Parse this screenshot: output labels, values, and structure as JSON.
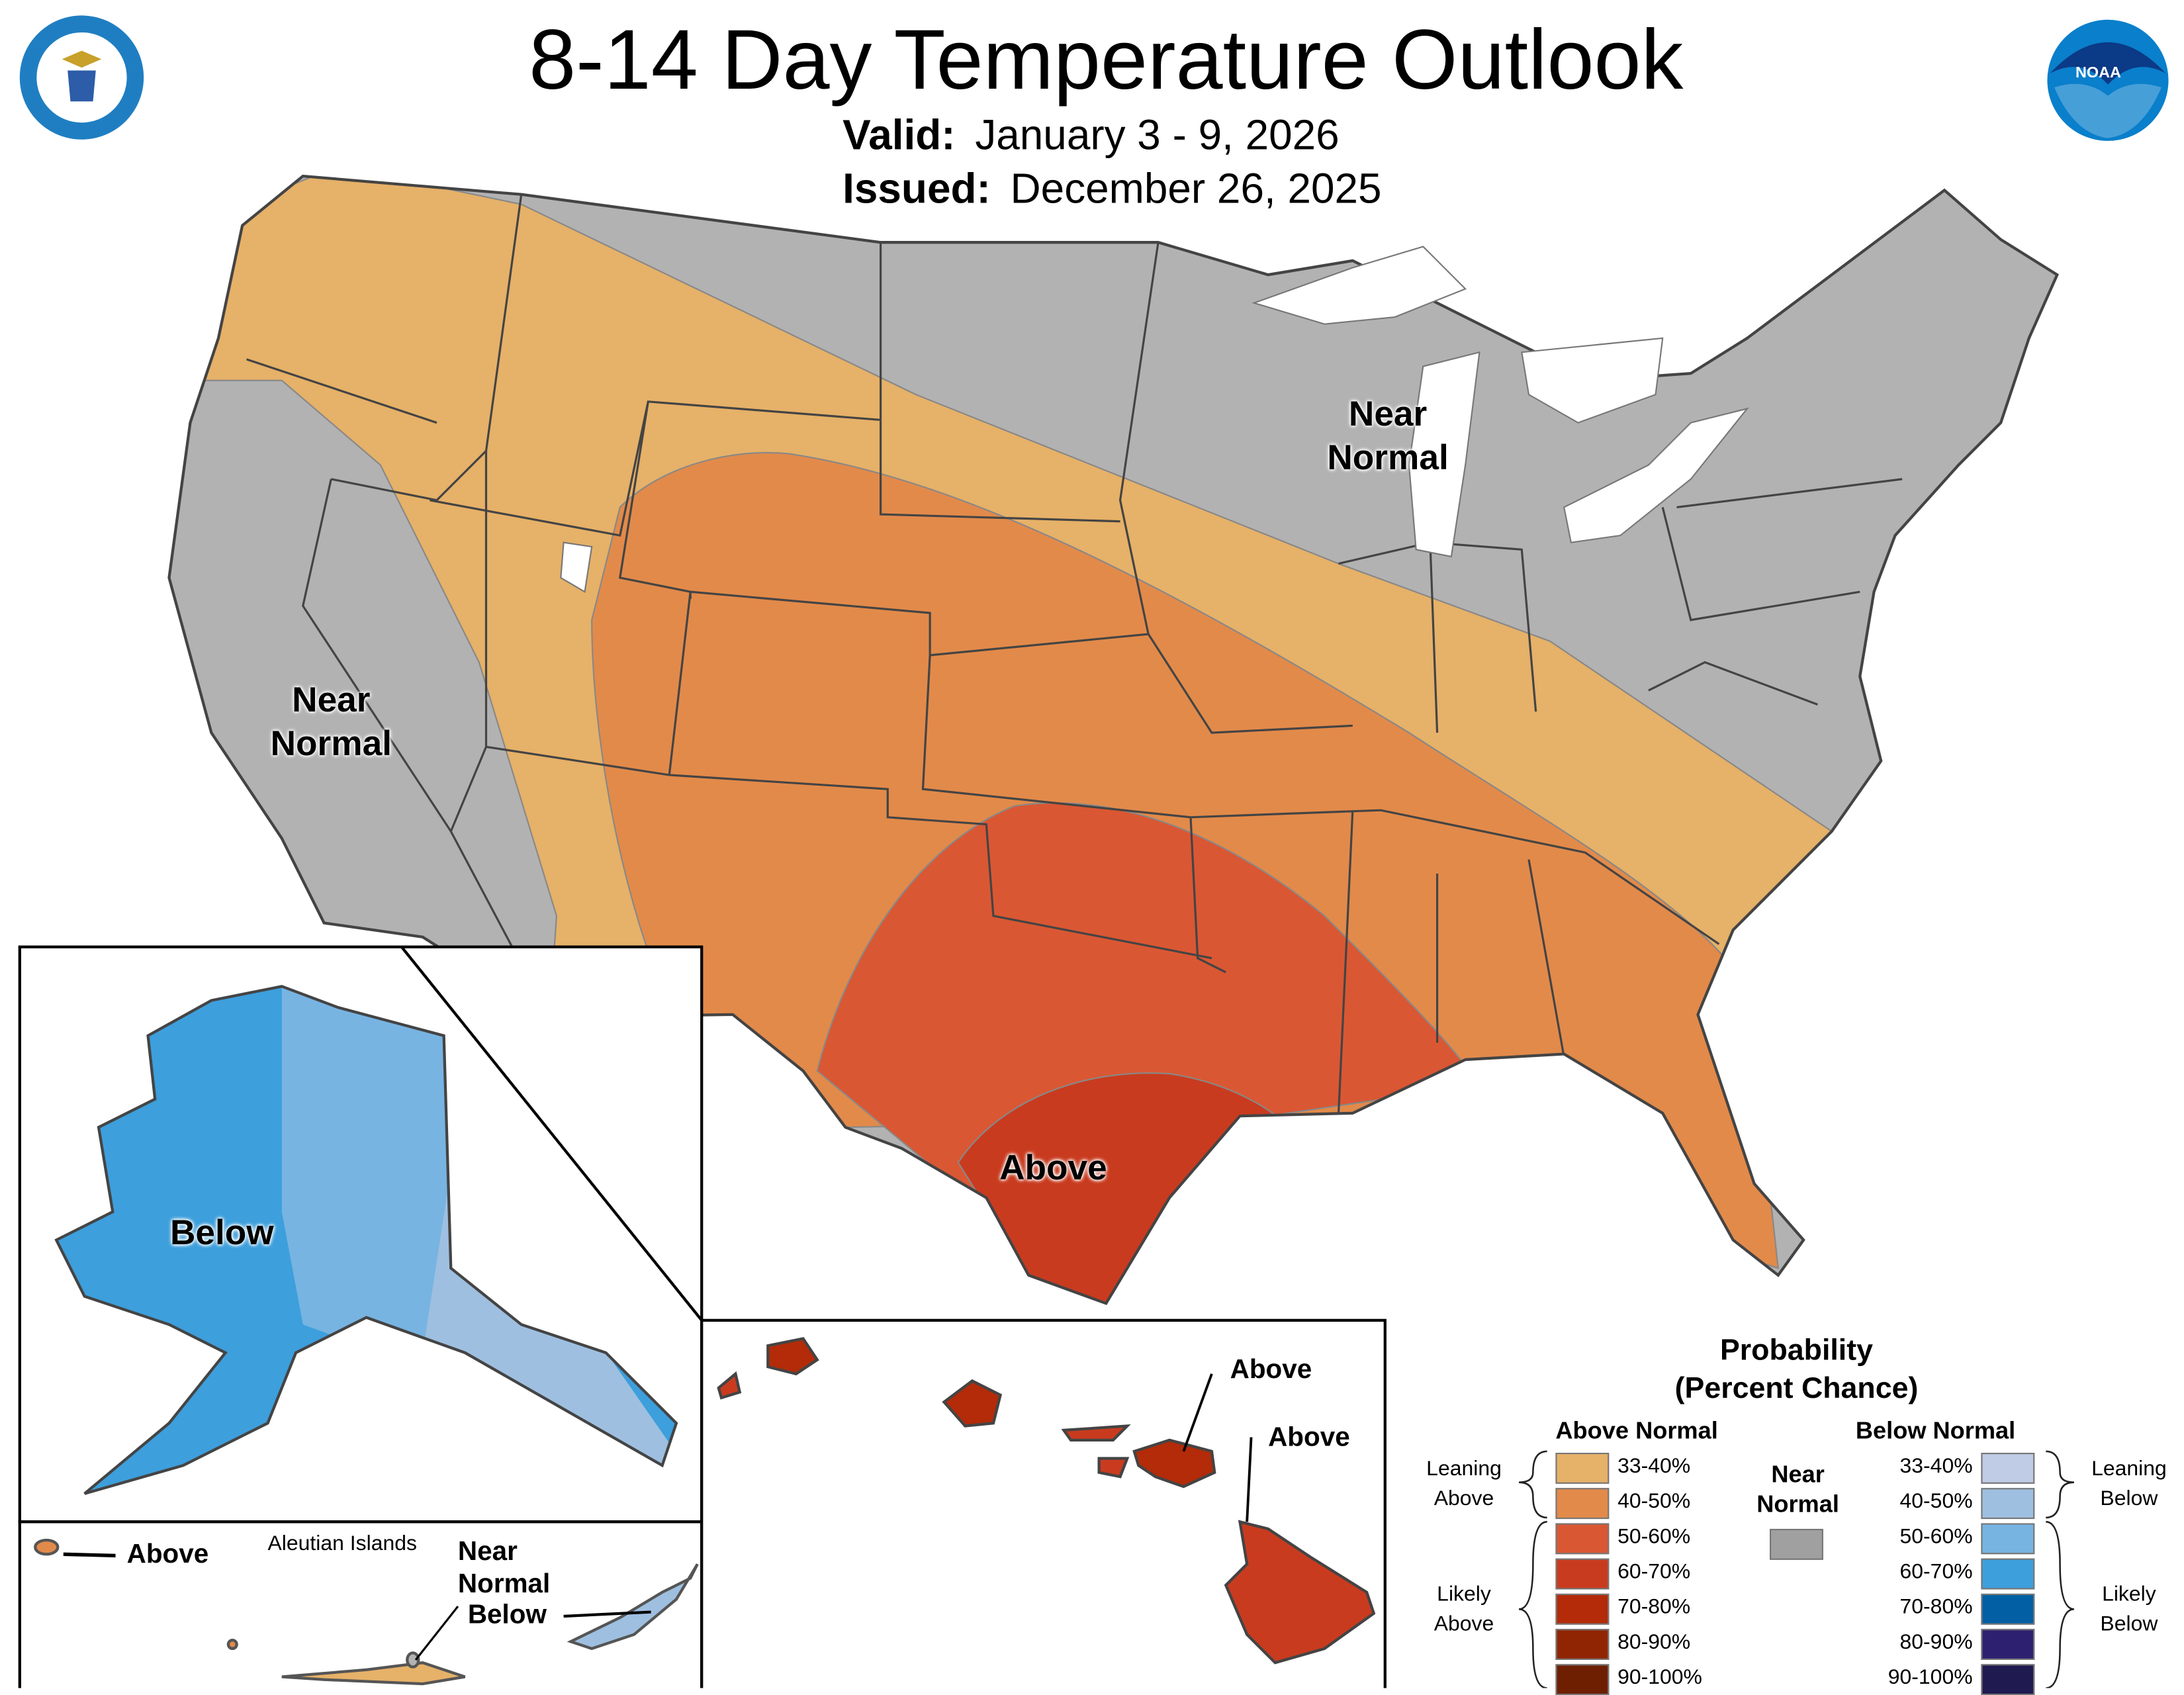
{
  "header": {
    "title": "8-14 Day Temperature Outlook",
    "valid_label": "Valid:",
    "valid_value": "January 3 - 9, 2026",
    "issued_label": "Issued:",
    "issued_value": "December 26, 2025",
    "left_logo": "DEPARTMENT OF COMMERCE · UNITED STATES OF AMERICA",
    "right_logo": "NOAA"
  },
  "map_labels": {
    "west": [
      "Near",
      "Normal"
    ],
    "great_lakes": [
      "Near",
      "Normal"
    ],
    "south": "Above",
    "alaska": "Below",
    "aleutian_title": "Aleutian Islands",
    "aleutian_above": "Above",
    "aleutian_near": [
      "Near",
      "Normal"
    ],
    "aleutian_below": "Below",
    "hawaii_1": "Above",
    "hawaii_2": "Above"
  },
  "legend": {
    "title1": "Probability",
    "title2": "(Percent Chance)",
    "above_header": "Above Normal",
    "below_header": "Below Normal",
    "near_normal": [
      "Near",
      "Normal"
    ],
    "near_color": "#A0A0A0",
    "leaning_above": [
      "Leaning",
      "Above"
    ],
    "likely_above": [
      "Likely",
      "Above"
    ],
    "leaning_below": [
      "Leaning",
      "Below"
    ],
    "likely_below": [
      "Likely",
      "Below"
    ],
    "above": [
      {
        "range": "33-40%",
        "color": "#E6B168"
      },
      {
        "range": "40-50%",
        "color": "#E28A4A"
      },
      {
        "range": "50-60%",
        "color": "#DA5733"
      },
      {
        "range": "60-70%",
        "color": "#C93B1F"
      },
      {
        "range": "70-80%",
        "color": "#B32B08"
      },
      {
        "range": "80-90%",
        "color": "#902504"
      },
      {
        "range": "90-100%",
        "color": "#6E1F02"
      }
    ],
    "below": [
      {
        "range": "33-40%",
        "color": "#C0CBE5"
      },
      {
        "range": "40-50%",
        "color": "#9EBFE0"
      },
      {
        "range": "50-60%",
        "color": "#77B4E2"
      },
      {
        "range": "60-70%",
        "color": "#3D9FDC"
      },
      {
        "range": "70-80%",
        "color": "#035FA3"
      },
      {
        "range": "80-90%",
        "color": "#2E2070"
      },
      {
        "range": "90-100%",
        "color": "#1F1A4F"
      }
    ]
  }
}
